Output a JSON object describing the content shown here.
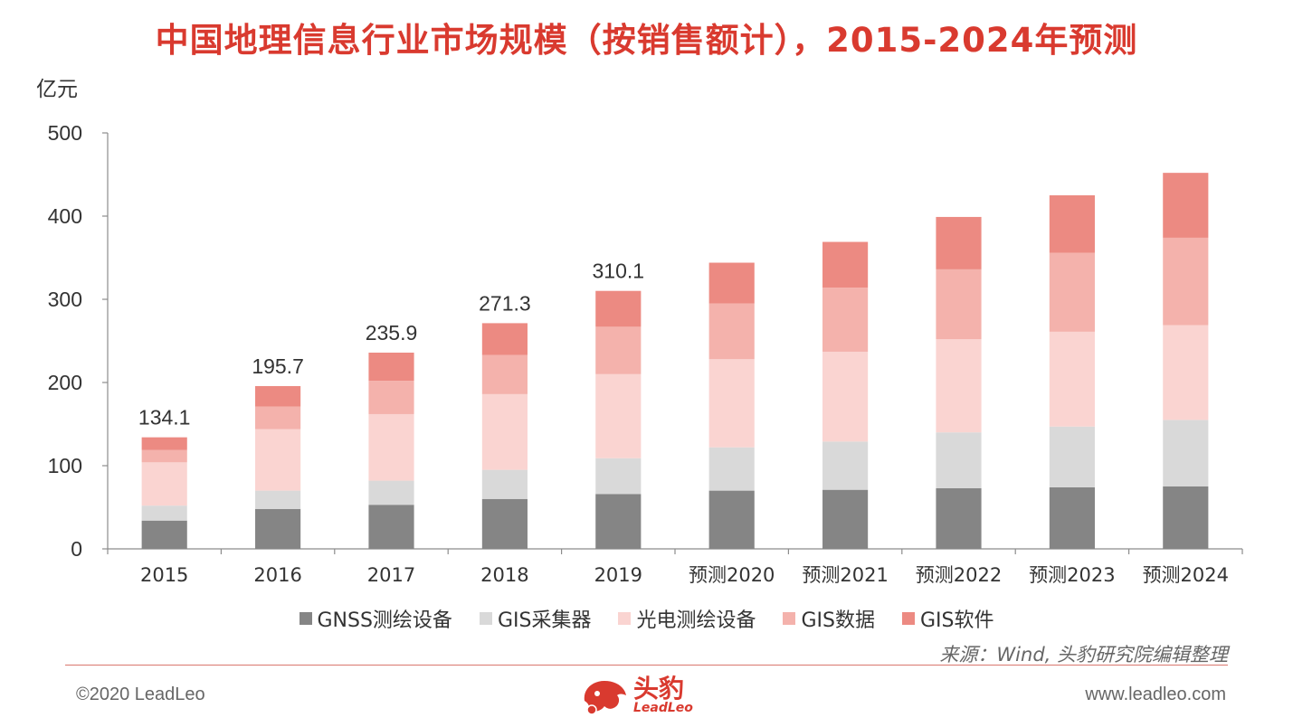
{
  "title": "中国地理信息行业市场规模（按销售额计），2015-2024年预测",
  "chart_data": {
    "type": "bar",
    "stacked": true,
    "ylabel": "亿元",
    "ylim": [
      0,
      500
    ],
    "yticks": [
      0,
      100,
      200,
      300,
      400,
      500
    ],
    "grid": false,
    "categories": [
      "2015",
      "2016",
      "2017",
      "2018",
      "2019",
      "预测2020",
      "预测2021",
      "预测2022",
      "预测2023",
      "预测2024"
    ],
    "series": [
      {
        "name": "GNSS测绘设备",
        "color": "#858585",
        "values": [
          34,
          48,
          53,
          60,
          66,
          70,
          71,
          73,
          74,
          75
        ]
      },
      {
        "name": "GIS采集器",
        "color": "#d9d9d9",
        "values": [
          18,
          22,
          29,
          35,
          43,
          52,
          58,
          67,
          73,
          80
        ]
      },
      {
        "name": "光电测绘设备",
        "color": "#fad4d1",
        "values": [
          52,
          74,
          80,
          91,
          101,
          106,
          108,
          112,
          114,
          114
        ]
      },
      {
        "name": "GIS数据",
        "color": "#f4b2ac",
        "values": [
          15,
          27,
          40,
          47,
          57,
          67,
          77,
          84,
          95,
          105
        ]
      },
      {
        "name": "GIS软件",
        "color": "#ec8a82",
        "values": [
          15.1,
          24.7,
          33.9,
          38.3,
          43.1,
          49,
          55,
          63,
          69,
          78
        ]
      }
    ],
    "totals": [
      "134.1",
      "195.7",
      "235.9",
      "271.3",
      "310.1",
      "",
      "",
      "",
      "",
      ""
    ],
    "legend_position": "bottom"
  },
  "footer": {
    "source": "来源：Wind,  头豹研究院编辑整理",
    "copyright": "©2020 LeadLeo",
    "website": "www.leadleo.com",
    "logo_cn": "头豹",
    "logo_en": "LeadLeo"
  }
}
